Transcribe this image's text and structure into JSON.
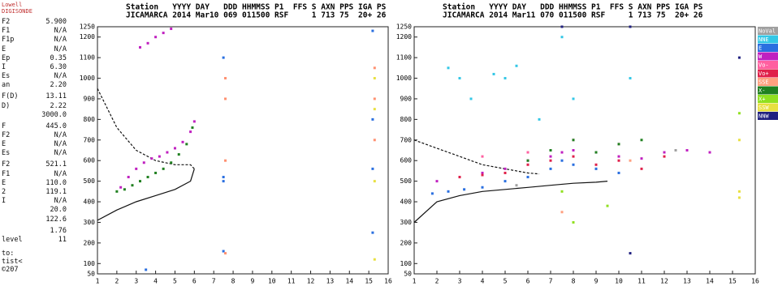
{
  "panel": {
    "header": [
      "Lowell",
      "DIGISONDE"
    ],
    "rows": [
      [
        "F2",
        "5.900"
      ],
      [
        "F1",
        "N/A"
      ],
      [
        "F1p",
        "N/A"
      ],
      [
        "E",
        "N/A"
      ],
      [
        "Ep",
        "0.35"
      ],
      [
        "I",
        "6.30"
      ],
      [
        "Es",
        "N/A"
      ],
      [
        "an",
        "2.20"
      ],
      [
        "F(D)",
        "13.11"
      ],
      [
        "D)",
        "2.22"
      ],
      [
        "3000.0"
      ],
      [
        "F",
        "445.0"
      ],
      [
        "F2",
        "N/A"
      ],
      [
        "E",
        "N/A"
      ],
      [
        "Es",
        "N/A"
      ],
      [
        "F2",
        "521.1"
      ],
      [
        "F1",
        "N/A"
      ],
      [
        "E",
        "110.0"
      ],
      [
        "2",
        "119.1"
      ],
      [
        "I",
        "N/A"
      ],
      [
        "20.0"
      ],
      [
        "122.6"
      ],
      [
        "1.76"
      ],
      [
        "level",
        "11"
      ]
    ],
    "footer": [
      "to:",
      "tist<",
      "©207"
    ]
  },
  "chart_data": [
    {
      "type": "scatter",
      "header": [
        {
          "name": "Station",
          "value": "JICAMARCA"
        },
        {
          "name": "YYYY",
          "value": "2014"
        },
        {
          "name": "DAY",
          "value": "Mar10"
        },
        {
          "name": "DDD",
          "value": "069"
        },
        {
          "name": "HHMMSS",
          "value": "011500"
        },
        {
          "name": "P1",
          "value": "RSF"
        },
        {
          "name": "FFS"
        },
        {
          "name": "S",
          "value": "1"
        },
        {
          "name": "AXN",
          "value": "713"
        },
        {
          "name": "PPS",
          "value": "75"
        },
        {
          "name": "IGA",
          "value": "20+"
        },
        {
          "name": "PS",
          "value": "26"
        }
      ],
      "xlim": [
        1,
        16
      ],
      "xticks": [
        1,
        2,
        3,
        4,
        5,
        6,
        7,
        8,
        9,
        10,
        11,
        12,
        13,
        14,
        15,
        16
      ],
      "ylim": [
        50,
        1250
      ],
      "yticks": [
        50,
        100,
        200,
        300,
        400,
        500,
        600,
        700,
        800,
        900,
        1000,
        1100,
        1200,
        1250
      ],
      "series": [
        {
          "color": "#c020c0",
          "x": [
            2.2,
            2.6,
            3.0,
            3.4,
            3.8,
            4.2,
            4.6,
            5.0,
            5.4,
            5.8,
            6.0,
            3.2,
            3.6,
            4.0,
            4.4,
            4.8
          ],
          "y": [
            470,
            520,
            560,
            590,
            610,
            620,
            640,
            660,
            690,
            740,
            790,
            1150,
            1170,
            1200,
            1220,
            1240
          ]
        },
        {
          "color": "#208020",
          "x": [
            2.0,
            2.4,
            2.8,
            3.2,
            3.6,
            4.0,
            4.4,
            4.8,
            5.2,
            5.6,
            5.9
          ],
          "y": [
            450,
            460,
            480,
            500,
            520,
            540,
            560,
            590,
            630,
            680,
            760
          ]
        },
        {
          "color": "#2a6fe0",
          "x": [
            7.5,
            7.5,
            7.5,
            7.5,
            15.2,
            15.2,
            15.2,
            15.2,
            3.5
          ],
          "y": [
            500,
            1100,
            520,
            160,
            1230,
            800,
            560,
            250,
            70
          ]
        },
        {
          "color": "#ff9070",
          "x": [
            7.6,
            7.6,
            7.6,
            7.6,
            15.3,
            15.3,
            15.3
          ],
          "y": [
            1000,
            900,
            600,
            150,
            1050,
            900,
            700
          ]
        },
        {
          "color": "#e8e040",
          "x": [
            15.3,
            15.3,
            15.3,
            15.3
          ],
          "y": [
            1000,
            850,
            500,
            120
          ]
        }
      ],
      "curves": [
        {
          "style": "solid",
          "x": [
            1,
            2,
            3,
            4,
            5,
            5.8,
            6
          ],
          "y": [
            310,
            360,
            400,
            430,
            460,
            500,
            560
          ]
        },
        {
          "style": "dashed",
          "x": [
            1,
            2,
            3,
            4,
            5,
            5.8,
            6
          ],
          "y": [
            950,
            760,
            650,
            600,
            580,
            580,
            560
          ]
        }
      ]
    },
    {
      "type": "scatter",
      "legend": "right",
      "header": [
        {
          "name": "Station",
          "value": "JICAMARCA"
        },
        {
          "name": "YYYY",
          "value": "2014"
        },
        {
          "name": "DAY",
          "value": "Mar11"
        },
        {
          "name": "DDD",
          "value": "070"
        },
        {
          "name": "HHMMSS",
          "value": "011500"
        },
        {
          "name": "P1",
          "value": "RSF"
        },
        {
          "name": "FFS"
        },
        {
          "name": "S",
          "value": "1"
        },
        {
          "name": "AXN",
          "value": "713"
        },
        {
          "name": "PPS",
          "value": "75"
        },
        {
          "name": "IGA",
          "value": "20+"
        },
        {
          "name": "PS",
          "value": "26"
        }
      ],
      "xlim": [
        1,
        16
      ],
      "xticks": [
        1,
        2,
        3,
        4,
        5,
        6,
        7,
        8,
        9,
        10,
        11,
        12,
        13,
        14,
        15,
        16
      ],
      "ylim": [
        50,
        1250
      ],
      "yticks": [
        50,
        100,
        200,
        300,
        400,
        500,
        600,
        700,
        800,
        900,
        1000,
        1100,
        1200,
        1250
      ],
      "series": [
        {
          "name": "NoVal",
          "color": "#a0a0a0",
          "x": [
            5.5,
            9,
            12.5
          ],
          "y": [
            480,
            560,
            650
          ]
        },
        {
          "name": "NNE",
          "color": "#33c7e6",
          "x": [
            2.5,
            3,
            3.5,
            4.5,
            5,
            5.5,
            6.5,
            7.5,
            8,
            10.5
          ],
          "y": [
            1050,
            1000,
            900,
            1020,
            1000,
            1060,
            800,
            1200,
            900,
            1000
          ]
        },
        {
          "name": "E",
          "color": "#2a6fe0",
          "x": [
            1.8,
            2.5,
            3.2,
            4,
            5,
            6,
            7,
            7.5,
            8,
            9,
            10
          ],
          "y": [
            440,
            450,
            460,
            470,
            500,
            520,
            560,
            600,
            580,
            560,
            540
          ]
        },
        {
          "name": "W",
          "color": "#c020c0",
          "x": [
            2,
            3,
            4,
            5,
            6,
            7,
            7.5,
            8,
            9,
            10,
            11,
            12,
            13,
            14
          ],
          "y": [
            500,
            520,
            540,
            560,
            600,
            620,
            640,
            650,
            640,
            620,
            610,
            640,
            650,
            640
          ]
        },
        {
          "name": "Vo-",
          "color": "#ff60a0",
          "x": [
            4,
            6,
            8,
            10
          ],
          "y": [
            620,
            640,
            700,
            680
          ]
        },
        {
          "name": "Vo+",
          "color": "#e0204a",
          "x": [
            3,
            4,
            5,
            6,
            7,
            8,
            9,
            10,
            11,
            12
          ],
          "y": [
            520,
            530,
            540,
            580,
            600,
            620,
            580,
            600,
            560,
            620
          ]
        },
        {
          "name": "SSE",
          "color": "#ffa080",
          "x": [
            7.5,
            10.5
          ],
          "y": [
            350,
            600
          ]
        },
        {
          "name": "X-",
          "color": "#208020",
          "x": [
            6,
            7,
            8,
            9,
            10,
            11
          ],
          "y": [
            600,
            650,
            700,
            640,
            680,
            700
          ]
        },
        {
          "name": "X+",
          "color": "#90e020",
          "x": [
            7.5,
            8,
            9.5,
            15.3
          ],
          "y": [
            450,
            300,
            380,
            830
          ]
        },
        {
          "name": "SSW",
          "color": "#e8e040",
          "x": [
            15.3,
            15.3,
            15.3
          ],
          "y": [
            700,
            450,
            420
          ]
        },
        {
          "name": "NNW",
          "color": "#202080",
          "x": [
            7.5,
            10.5,
            10.5,
            15.3
          ],
          "y": [
            1250,
            1250,
            150,
            1100
          ]
        }
      ],
      "curves": [
        {
          "style": "solid",
          "x": [
            1,
            2,
            3,
            4,
            5,
            6,
            7,
            8,
            9,
            9.5
          ],
          "y": [
            300,
            400,
            430,
            450,
            460,
            470,
            480,
            490,
            495,
            500
          ]
        },
        {
          "style": "dashed",
          "x": [
            1,
            2,
            3,
            4,
            5,
            6,
            6.5
          ],
          "y": [
            700,
            660,
            620,
            580,
            560,
            540,
            535
          ]
        }
      ]
    }
  ]
}
